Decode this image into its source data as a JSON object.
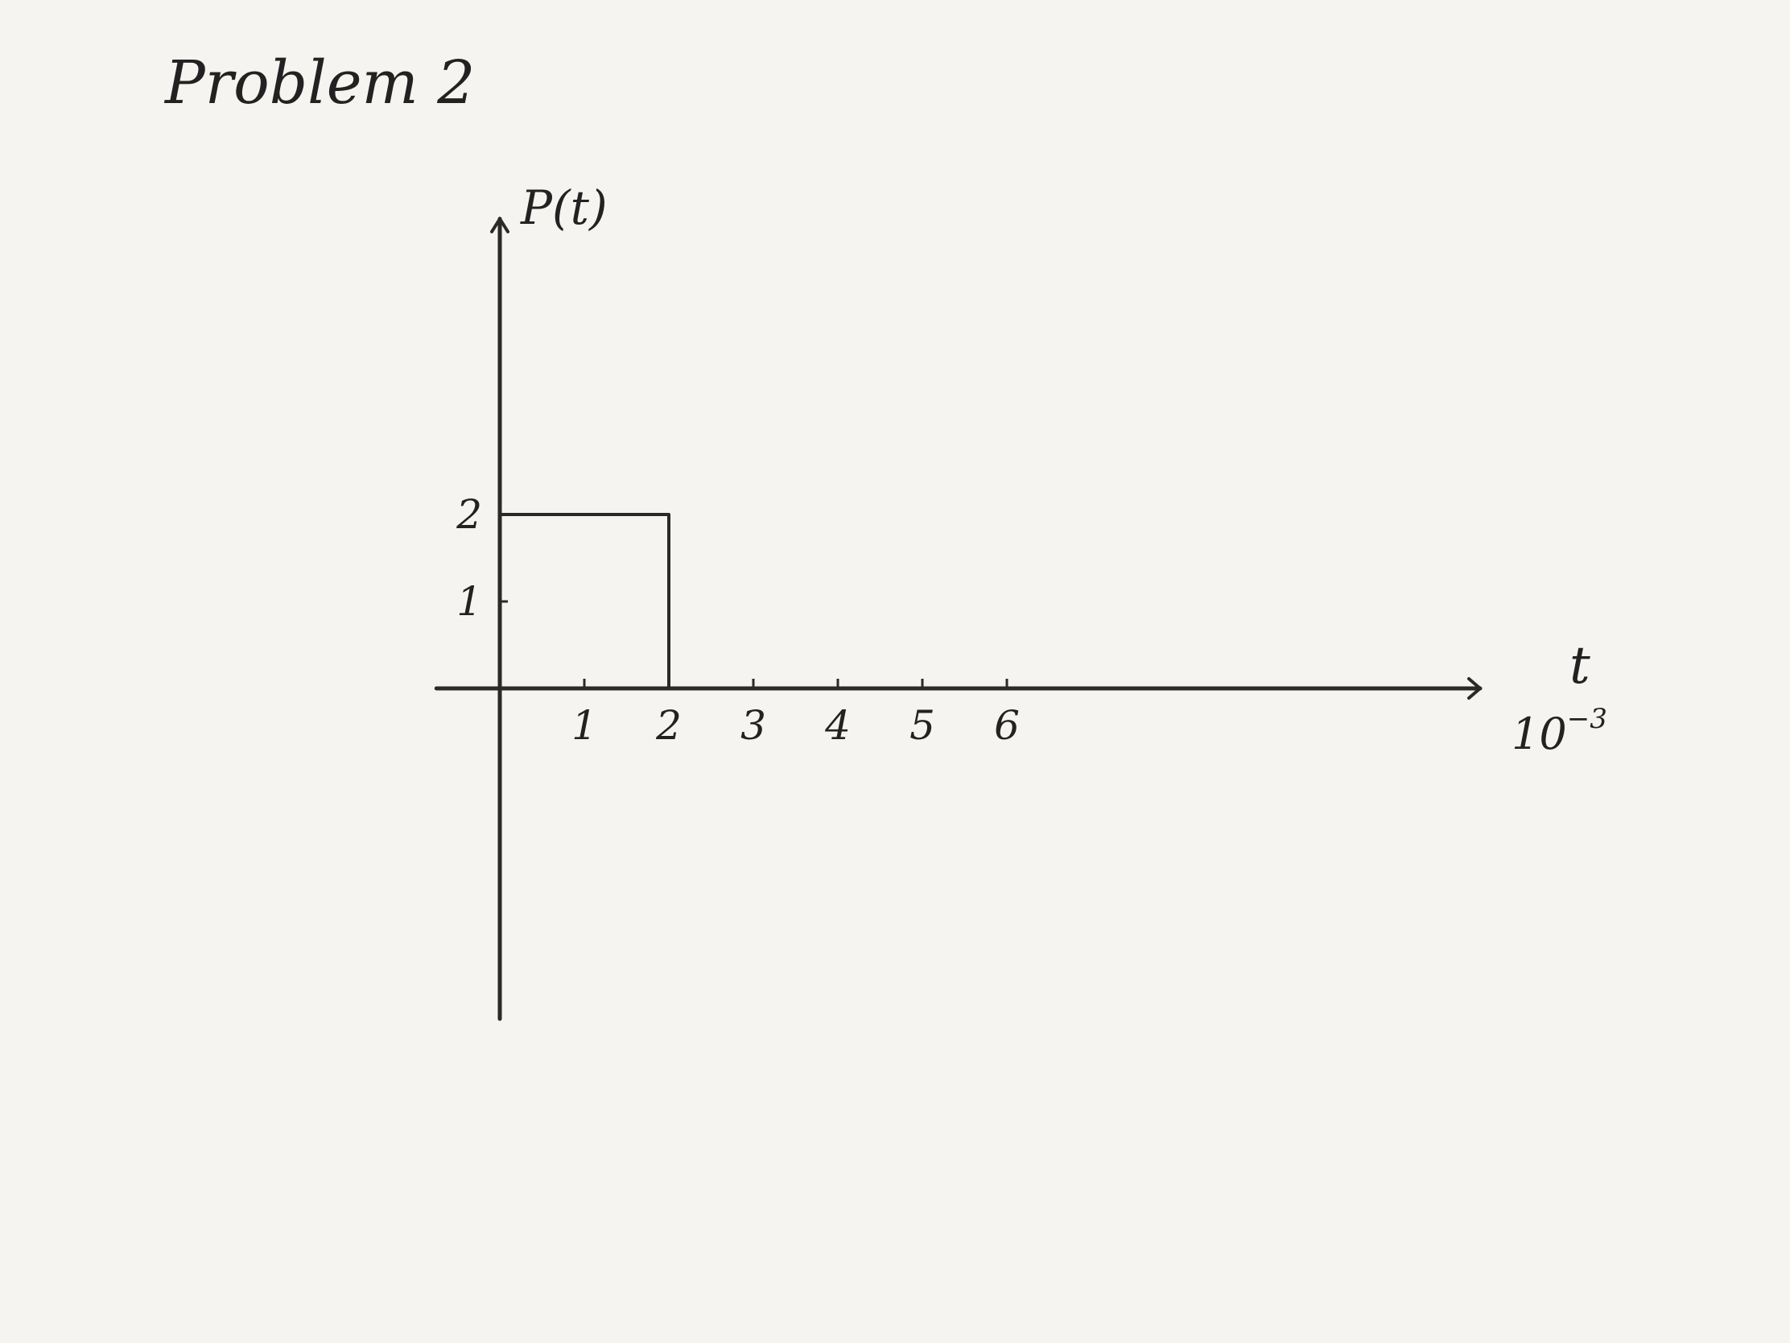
{
  "page": {
    "title": "Problem 2",
    "ink_color": "#2a2a2a",
    "paper_color": "#f5f4f0"
  },
  "chart_data": {
    "type": "line",
    "title": "Problem 2",
    "ylabel": "P(t)",
    "xlabel": "t",
    "x_scale_label": "10",
    "x_scale_exponent": "−3",
    "x_ticks": [
      {
        "value": 1,
        "label": "1"
      },
      {
        "value": 2,
        "label": "2"
      },
      {
        "value": 3,
        "label": "3"
      },
      {
        "value": 4,
        "label": "4"
      },
      {
        "value": 5,
        "label": "5"
      },
      {
        "value": 6,
        "label": "6"
      }
    ],
    "y_ticks": [
      {
        "value": 1,
        "label": "1"
      },
      {
        "value": 2,
        "label": "2"
      }
    ],
    "series": [
      {
        "name": "P(t)",
        "points": [
          [
            0,
            2
          ],
          [
            2,
            2
          ],
          [
            2,
            0
          ],
          [
            6,
            0
          ]
        ]
      }
    ],
    "xlim": [
      -0.75,
      11.6
    ],
    "ylim": [
      -3.8,
      5.4
    ],
    "grid": false
  }
}
